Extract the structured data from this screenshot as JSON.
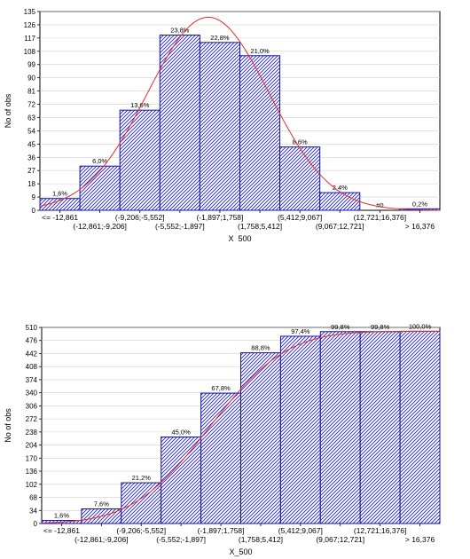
{
  "chart_data": [
    {
      "type": "bar",
      "title": "",
      "xlabel": "X_500",
      "ylabel": "No of obs",
      "ylim": [
        0,
        135
      ],
      "yticks": [
        0,
        9,
        18,
        27,
        36,
        45,
        54,
        63,
        72,
        81,
        90,
        99,
        108,
        117,
        126,
        135
      ],
      "categories": [
        "<= -12,861",
        "(-12,861;-9,206]",
        "(-9,206;-5,552]",
        "(-5,552;-1,897]",
        "(-1,897;1,758]",
        "(1,758;5,412]",
        "(5,412;9,067]",
        "(9,067;12,721]",
        "(12,721;16,376]",
        "> 16,376"
      ],
      "values": [
        8,
        30,
        68,
        119,
        114,
        105,
        43,
        12,
        0,
        1
      ],
      "bar_labels": [
        "1,6%",
        "6,0%",
        "13,6%",
        "23,8%",
        "22,8%",
        "21,0%",
        "8,6%",
        "2,4%",
        "#0",
        "0,2%"
      ],
      "fit_curve": "normal",
      "colors": {
        "bar_edge": "#1010b0",
        "hatch": "#1a1aa8",
        "curve": "#e03030"
      }
    },
    {
      "type": "bar",
      "title": "",
      "xlabel": "X_500",
      "ylabel": "No of obs",
      "ylim": [
        0,
        510
      ],
      "yticks": [
        0,
        34,
        68,
        102,
        136,
        170,
        204,
        238,
        272,
        306,
        340,
        374,
        408,
        442,
        476,
        510
      ],
      "categories": [
        "<= -12,861",
        "(-12,861;-9,206]",
        "(-9,206;-5,552]",
        "(-5,552;-1,897]",
        "(-1,897;1,758]",
        "(1,758;5,412]",
        "(5,412;9,067]",
        "(9,067;12,721]",
        "(12,721;16,376]",
        "> 16,376"
      ],
      "values": [
        8,
        38,
        106,
        225,
        339,
        444,
        487,
        499,
        499,
        500
      ],
      "bar_labels": [
        "1,6%",
        "7,6%",
        "21,2%",
        "45,0%",
        "67,8%",
        "88,8%",
        "97,4%",
        "99,8%",
        "99,8%",
        "100,0%"
      ],
      "fit_curve": "cumulative normal",
      "colors": {
        "bar_edge": "#1010b0",
        "hatch": "#1a1aa8",
        "curve": "#e03030"
      }
    }
  ]
}
